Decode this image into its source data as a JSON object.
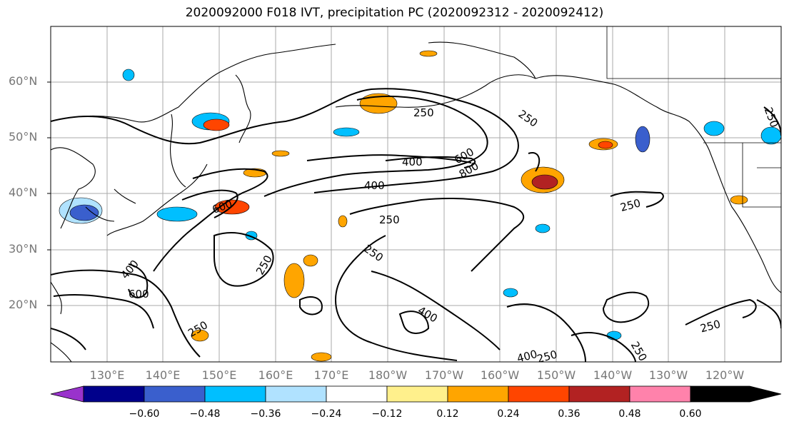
{
  "title": "2020092000 F018 IVT, precipitation PC (2020092312 - 2020092412)",
  "lat_labels": [
    "60°N",
    "50°N",
    "40°N",
    "30°N",
    "20°N"
  ],
  "lon_labels": [
    "130°E",
    "140°E",
    "150°E",
    "160°E",
    "170°E",
    "180°W",
    "170°W",
    "160°W",
    "150°W",
    "140°W",
    "130°W",
    "120°W"
  ],
  "contour_labels": {
    "c250a": "250",
    "c400a": "400",
    "c600a": "600",
    "c800a": "800",
    "c400b": "400",
    "c250b": "250",
    "c600b": "600",
    "c250c": "250",
    "c400c": "400",
    "c600c": "600",
    "c250d": "250",
    "c400d": "400",
    "c250e": "250",
    "c250f": "250",
    "c250g": "250",
    "c250h": "250",
    "c250i": "250",
    "c250j": "250",
    "c400e": "400",
    "c250k": "250"
  },
  "colorbar": {
    "colors": [
      "#9932cc",
      "#00008b",
      "#3a5fcd",
      "#00bfff",
      "#b0e2ff",
      "#ffffff",
      "#fff08c",
      "#ffa500",
      "#ff4500",
      "#b22222",
      "#ff82ab"
    ],
    "tick_labels": [
      "−0.60",
      "−0.48",
      "−0.36",
      "−0.24",
      "−0.12",
      "0.12",
      "0.24",
      "0.36",
      "0.48",
      "0.60"
    ]
  },
  "colors": {
    "contour": "#000000",
    "grid": "#aaaaaa",
    "coast": "#000000",
    "axis_label": "#777777"
  }
}
